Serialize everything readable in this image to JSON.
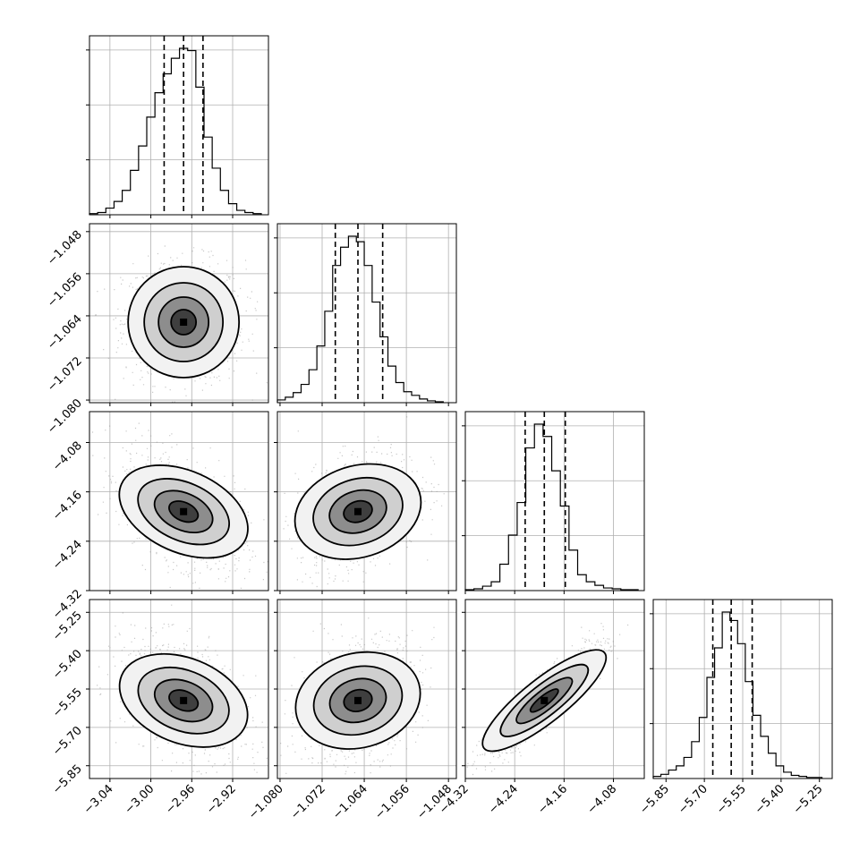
{
  "figure": {
    "kind": "corner-plot",
    "description_colors": {
      "frame": "#000000",
      "grid": "#b0b0b0",
      "scatter": "#9a9a9a"
    }
  },
  "chart_data": [
    {
      "type": "histogram",
      "panel": "hist-0",
      "param": 0,
      "xlim": [
        -3.06,
        -2.885
      ],
      "grid": true,
      "bins": [
        -3.06,
        -3.052,
        -3.044,
        -3.036,
        -3.028,
        -3.02,
        -3.012,
        -3.004,
        -2.996,
        -2.988,
        -2.98,
        -2.972,
        -2.964,
        -2.956,
        -2.948,
        -2.94,
        -2.932,
        -2.924,
        -2.916,
        -2.908,
        -2.9,
        -2.892
      ],
      "counts": [
        1,
        2,
        6,
        12,
        22,
        40,
        62,
        88,
        110,
        127,
        141,
        150,
        148,
        115,
        70,
        42,
        22,
        10,
        4,
        2,
        1
      ],
      "quantiles": [
        -2.987,
        -2.968,
        -2.949
      ]
    },
    {
      "type": "histogram",
      "panel": "hist-1",
      "param": 1,
      "xlim": [
        -1.0805,
        -1.0465
      ],
      "grid": true,
      "bins": [
        -1.0805,
        -1.079,
        -1.0775,
        -1.076,
        -1.0745,
        -1.073,
        -1.0715,
        -1.07,
        -1.0685,
        -1.067,
        -1.0655,
        -1.064,
        -1.0625,
        -1.061,
        -1.0595,
        -1.058,
        -1.0565,
        -1.055,
        -1.0535,
        -1.052,
        -1.0505,
        -1.049
      ],
      "counts": [
        3,
        6,
        11,
        20,
        36,
        62,
        100,
        150,
        170,
        182,
        176,
        150,
        110,
        72,
        40,
        22,
        12,
        8,
        4,
        2,
        1
      ],
      "quantiles": [
        -1.0695,
        -1.0652,
        -1.0605
      ]
    },
    {
      "type": "histogram",
      "panel": "hist-2",
      "param": 2,
      "xlim": [
        -4.32,
        -4.03
      ],
      "grid": true,
      "bins": [
        -4.32,
        -4.306,
        -4.292,
        -4.278,
        -4.264,
        -4.25,
        -4.236,
        -4.222,
        -4.208,
        -4.194,
        -4.18,
        -4.166,
        -4.152,
        -4.138,
        -4.124,
        -4.11,
        -4.096,
        -4.082,
        -4.068,
        -4.054,
        -4.04
      ],
      "counts": [
        1,
        2,
        5,
        10,
        30,
        63,
        100,
        162,
        189,
        175,
        136,
        96,
        46,
        18,
        10,
        6,
        3,
        2,
        1,
        1
      ],
      "quantiles": [
        -4.223,
        -4.192,
        -4.158
      ]
    },
    {
      "type": "histogram",
      "panel": "hist-3",
      "param": 3,
      "xlim": [
        -5.9,
        -5.2
      ],
      "grid": true,
      "bins": [
        -5.9,
        -5.87,
        -5.84,
        -5.81,
        -5.78,
        -5.75,
        -5.72,
        -5.69,
        -5.66,
        -5.63,
        -5.6,
        -5.57,
        -5.54,
        -5.51,
        -5.48,
        -5.45,
        -5.42,
        -5.39,
        -5.36,
        -5.33,
        -5.3,
        -5.27,
        -5.24
      ],
      "counts": [
        2,
        4,
        8,
        12,
        20,
        35,
        58,
        96,
        124,
        158,
        150,
        128,
        92,
        60,
        40,
        24,
        12,
        6,
        3,
        2,
        1,
        1
      ],
      "quantiles": [
        -5.667,
        -5.595,
        -5.513
      ]
    },
    {
      "type": "scatter",
      "panel": "pair-1-0",
      "x_param": 0,
      "y_param": 1,
      "xlim": [
        -3.06,
        -2.885
      ],
      "ylim": [
        -1.0805,
        -1.0465
      ],
      "center": [
        -2.968,
        -1.0652
      ],
      "density_peak": [
        -2.968,
        -1.0652
      ],
      "contour_levels": 4,
      "grid": true
    },
    {
      "type": "scatter",
      "panel": "pair-2-0",
      "x_param": 0,
      "y_param": 2,
      "xlim": [
        -3.06,
        -2.885
      ],
      "ylim": [
        -4.32,
        -4.03
      ],
      "center": [
        -2.968,
        -4.192
      ],
      "correlation": -0.5,
      "contour_levels": 4,
      "grid": true
    },
    {
      "type": "scatter",
      "panel": "pair-2-1",
      "x_param": 1,
      "y_param": 2,
      "xlim": [
        -1.0805,
        -1.0465
      ],
      "ylim": [
        -4.32,
        -4.03
      ],
      "center": [
        -1.0652,
        -4.192
      ],
      "correlation": 0.35,
      "contour_levels": 4,
      "grid": true
    },
    {
      "type": "scatter",
      "panel": "pair-3-0",
      "x_param": 0,
      "y_param": 3,
      "xlim": [
        -3.06,
        -2.885
      ],
      "ylim": [
        -5.9,
        -5.2
      ],
      "center": [
        -2.968,
        -5.595
      ],
      "correlation": -0.45,
      "contour_levels": 4,
      "grid": true
    },
    {
      "type": "scatter",
      "panel": "pair-3-1",
      "x_param": 1,
      "y_param": 3,
      "xlim": [
        -1.0805,
        -1.0465
      ],
      "ylim": [
        -5.9,
        -5.2
      ],
      "center": [
        -1.0652,
        -5.595
      ],
      "correlation": 0.3,
      "contour_levels": 4,
      "grid": true
    },
    {
      "type": "scatter",
      "panel": "pair-3-2",
      "x_param": 2,
      "y_param": 3,
      "xlim": [
        -4.32,
        -4.03
      ],
      "ylim": [
        -5.9,
        -5.2
      ],
      "center": [
        -4.192,
        -5.595
      ],
      "correlation": 0.92,
      "contour_levels": 4,
      "grid": true
    }
  ],
  "axes": {
    "x_ticks": [
      {
        "values": [
          -3.04,
          -3.0,
          -2.96,
          -2.92
        ],
        "labels": [
          "−3.04",
          "−3.00",
          "−2.96",
          "−2.92"
        ]
      },
      {
        "values": [
          -1.08,
          -1.072,
          -1.064,
          -1.056,
          -1.048
        ],
        "labels": [
          "−1.080",
          "−1.072",
          "−1.064",
          "−1.056",
          "−1.048"
        ]
      },
      {
        "values": [
          -4.32,
          -4.24,
          -4.16,
          -4.08
        ],
        "labels": [
          "−4.32",
          "−4.24",
          "−4.16",
          "−4.08"
        ]
      },
      {
        "values": [
          -5.85,
          -5.7,
          -5.55,
          -5.4,
          -5.25
        ],
        "labels": [
          "−5.85",
          "−5.70",
          "−5.55",
          "−5.40",
          "−5.25"
        ]
      }
    ],
    "y_ticks": [
      null,
      {
        "values": [
          -1.08,
          -1.072,
          -1.064,
          -1.056,
          -1.048
        ],
        "labels": [
          "−1.080",
          "−1.072",
          "−1.064",
          "−1.056",
          "−1.048"
        ]
      },
      {
        "values": [
          -4.32,
          -4.24,
          -4.16,
          -4.08
        ],
        "labels": [
          "−4.32",
          "−4.24",
          "−4.16",
          "−4.08"
        ]
      },
      {
        "values": [
          -5.85,
          -5.7,
          -5.55,
          -5.4,
          -5.25
        ],
        "labels": [
          "−5.85",
          "−5.70",
          "−5.55",
          "−5.40",
          "−5.25"
        ]
      }
    ]
  }
}
